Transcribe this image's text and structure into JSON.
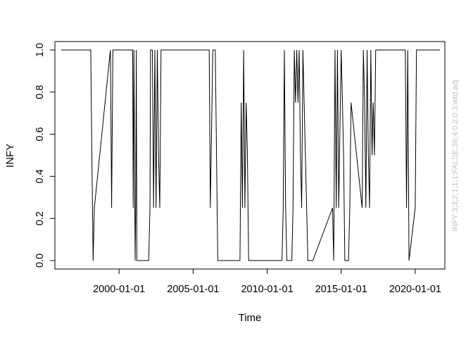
{
  "chart_data": {
    "type": "line",
    "xlabel": "Time",
    "ylabel": "INFY",
    "side_annotation": "INFY:3;3;2;1;1;1;FALSE;36;4;0.2;0.3;wtd.adj",
    "side_annotation_color": "#bfbfbf",
    "line_color": "#000000",
    "xlim": [
      "1995-09-01",
      "2022-01-01"
    ],
    "ylim": [
      0,
      1.04
    ],
    "x_ticks": [
      "2000-01-01",
      "2005-01-01",
      "2010-01-01",
      "2015-01-01",
      "2020-01-01"
    ],
    "y_ticks": [
      "0.0",
      "0.2",
      "0.4",
      "0.6",
      "0.8",
      "1.0"
    ],
    "y_tick_values": [
      0,
      0.2,
      0.4,
      0.6,
      0.8,
      1.0
    ],
    "series": [
      {
        "x": [
          "1996-02-01",
          "1998-02-01",
          "1998-03-01",
          "1998-04-01",
          "1998-05-01",
          "1999-06-01",
          "1999-07-01",
          "1999-08-01",
          "2000-12-01",
          "2000-12-15",
          "2001-01-01",
          "2001-01-15",
          "2001-02-01",
          "2001-02-15",
          "2001-03-01",
          "2001-03-15",
          "2002-01-01",
          "2002-02-01",
          "2002-02-15",
          "2002-04-01",
          "2002-05-01",
          "2002-06-01",
          "2002-07-01",
          "2002-08-01",
          "2002-09-01",
          "2002-10-01",
          "2002-11-01",
          "2003-01-01",
          "2003-03-01",
          "2006-01-01",
          "2006-02-01",
          "2006-03-01",
          "2006-05-01",
          "2006-06-01",
          "2006-07-01",
          "2006-08-01",
          "2006-09-01",
          "2007-02-01",
          "2007-03-01",
          "2008-03-01",
          "2008-04-01",
          "2008-05-01",
          "2008-06-01",
          "2008-07-01",
          "2008-08-01",
          "2008-09-01",
          "2008-10-01",
          "2011-01-01",
          "2011-02-01",
          "2011-03-01",
          "2011-04-01",
          "2011-05-01",
          "2011-06-01",
          "2011-09-01",
          "2011-10-01",
          "2011-11-01",
          "2011-12-01",
          "2012-01-01",
          "2012-02-01",
          "2012-03-01",
          "2012-04-01",
          "2012-05-01",
          "2012-06-01",
          "2012-07-01",
          "2012-08-01",
          "2012-09-01",
          "2012-10-01",
          "2012-11-01",
          "2013-01-01",
          "2013-02-01",
          "2014-06-01",
          "2014-07-01",
          "2014-08-01",
          "2014-09-01",
          "2014-10-01",
          "2014-11-01",
          "2015-01-01",
          "2015-02-01",
          "2015-03-01",
          "2015-04-01",
          "2015-05-01",
          "2015-07-01",
          "2015-08-01",
          "2015-09-01",
          "2016-06-01",
          "2016-07-01",
          "2016-08-01",
          "2016-09-01",
          "2016-10-01",
          "2016-11-01",
          "2016-12-01",
          "2017-01-01",
          "2017-02-01",
          "2017-03-01",
          "2017-04-01",
          "2017-05-01",
          "2017-06-01",
          "2017-07-01",
          "2019-05-01",
          "2019-06-01",
          "2019-07-01",
          "2019-08-01",
          "2020-01-01",
          "2020-02-01",
          "2020-03-01",
          "2020-04-01",
          "2021-09-01"
        ],
        "y": [
          1,
          1,
          0.5,
          0,
          0.25,
          1,
          0.25,
          1,
          1,
          0.25,
          1,
          0.5,
          0,
          0.25,
          1,
          0,
          0,
          0.25,
          1,
          1,
          0.25,
          1,
          0.25,
          1,
          0.5,
          0.25,
          1,
          1,
          1,
          1,
          1,
          0.25,
          1,
          1,
          1,
          0.5,
          0,
          0,
          0,
          0,
          0.75,
          0.25,
          1,
          0.25,
          0.75,
          0.5,
          0,
          0,
          0.25,
          1,
          0.25,
          0,
          0,
          0,
          0.25,
          1,
          0.75,
          1,
          0.75,
          1,
          0.5,
          0.25,
          1,
          0.75,
          0.5,
          0.25,
          0,
          0,
          0,
          0,
          0.25,
          0,
          1,
          0.25,
          1,
          0.25,
          1,
          0.75,
          0.5,
          0,
          0,
          0,
          0.25,
          0.75,
          0.25,
          1,
          0.75,
          0.25,
          1,
          0.5,
          0.25,
          1,
          0.5,
          0.75,
          0.5,
          1,
          1,
          1,
          1,
          0.25,
          1,
          0,
          0.25,
          1,
          1,
          1,
          1
        ]
      }
    ]
  }
}
